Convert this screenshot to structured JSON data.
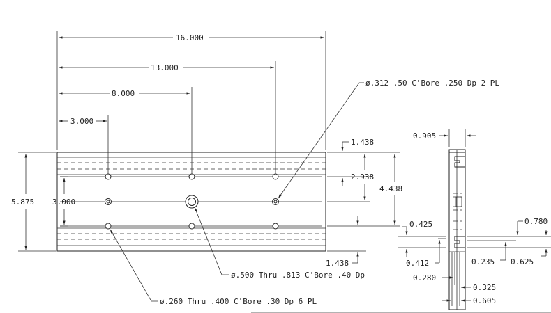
{
  "drawing": {
    "top_dims": {
      "d16": "16.000",
      "d13": "13.000",
      "d8": "8.000",
      "d3": "3.000"
    },
    "left_dims": {
      "overall": "5.875",
      "inner": "3.000"
    },
    "right_dims": {
      "d1438_top": "1.438",
      "d2938": "2.938",
      "d4438": "4.438",
      "d1438_bottom": "1.438"
    },
    "callouts": {
      "cbore_312": "ø.312 .50 C'Bore .250 Dp 2 PL",
      "thru_500": "ø.500 Thru .813 C'Bore .40 Dp",
      "thru_260": "ø.260 Thru .400 C'Bore .30 Dp  6 PL"
    },
    "side_dims": {
      "d0905": "0.905",
      "d0425": "0.425",
      "d0412": "0.412",
      "d0780": "0.780",
      "d0235": "0.235",
      "d0625": "0.625",
      "d0280": "0.280",
      "d0325": "0.325",
      "d0605": "0.605"
    }
  }
}
